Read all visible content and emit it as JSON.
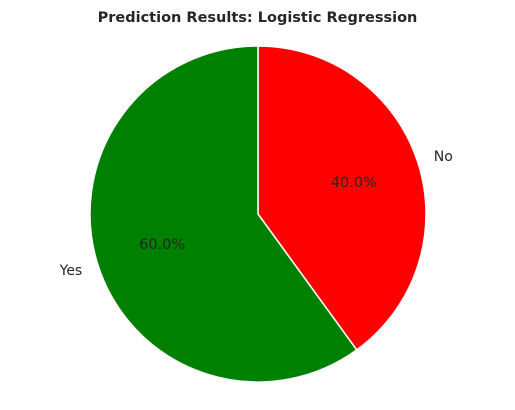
{
  "chart_data": {
    "type": "pie",
    "title": "Prediction Results: Logistic Regression",
    "slices": [
      {
        "label": "No",
        "value": 40.0,
        "percent_label": "40.0%",
        "color": "#ff0000"
      },
      {
        "label": "Yes",
        "value": 60.0,
        "percent_label": "60.0%",
        "color": "#008000"
      }
    ],
    "start_angle_deg": 90,
    "direction": "clockwise",
    "edge_color": "#ffffff"
  }
}
